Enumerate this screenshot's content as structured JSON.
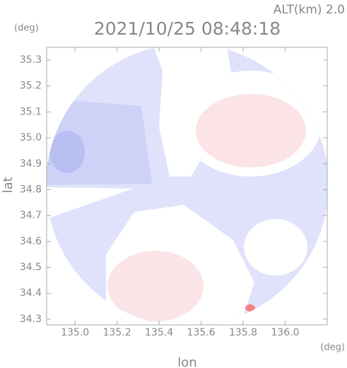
{
  "chart_data": {
    "type": "map",
    "subtitle": "ALT(km) 2.0",
    "title": "2021/10/25 08:48:18",
    "y_unit": "(deg)",
    "x_unit": "(deg)",
    "ylabel": "lat",
    "xlabel": "lon",
    "xlim": [
      134.865,
      136.2
    ],
    "ylim": [
      34.278,
      35.349
    ],
    "xticks": [
      {
        "value": 135,
        "label": "135.0"
      },
      135.2,
      135.4,
      135.6,
      135.8,
      {
        "value": 136,
        "label": "136.0"
      }
    ],
    "yticks": [
      34.3,
      34.4,
      34.5,
      34.6,
      34.7,
      34.8,
      34.9,
      {
        "value": 35,
        "label": "35.0"
      },
      35.1,
      35.2,
      35.3
    ]
  }
}
